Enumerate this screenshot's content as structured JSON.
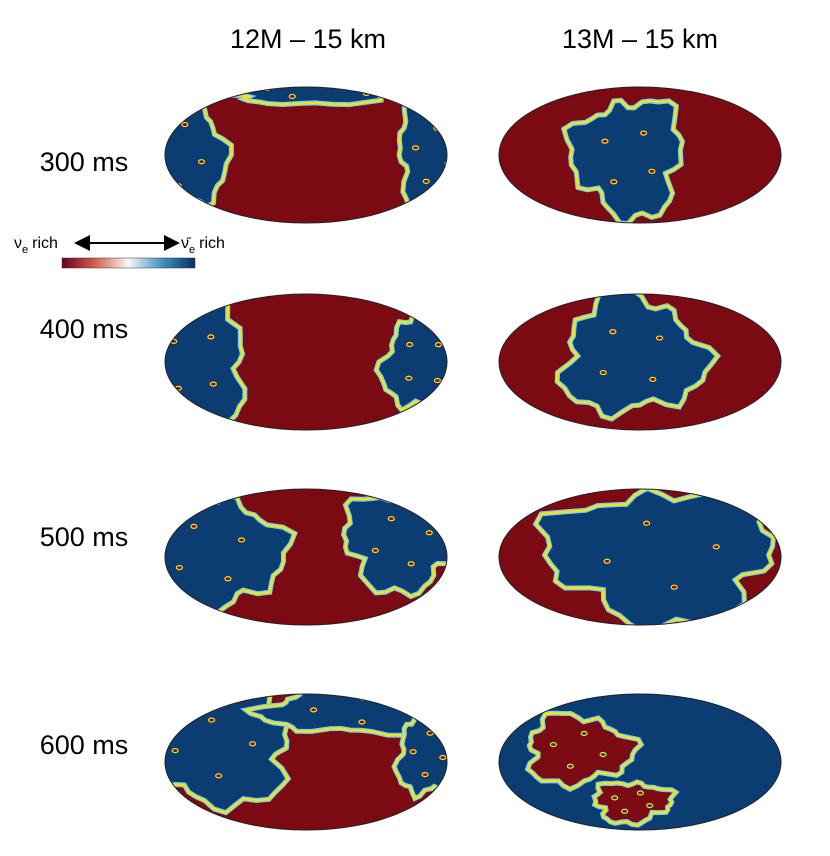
{
  "columns": [
    "12M – 15 km",
    "13M – 15 km"
  ],
  "rows": [
    "300 ms",
    "400 ms",
    "500 ms",
    "600 ms"
  ],
  "colorbar": {
    "left": {
      "symbol": "ν",
      "subscript": "e",
      "text": "rich"
    },
    "right": {
      "symbol": "ν̄",
      "subscript": "e",
      "text": "rich"
    }
  }
}
